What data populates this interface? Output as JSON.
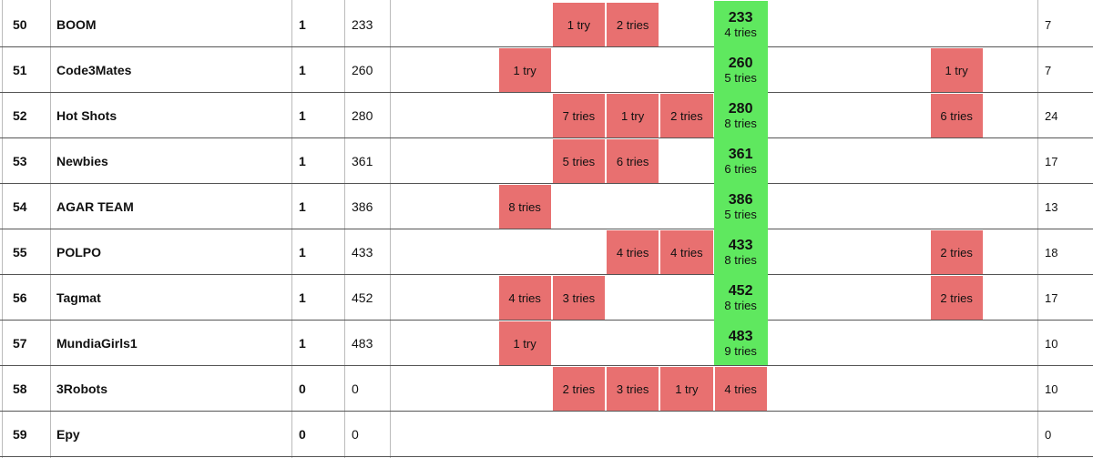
{
  "table": {
    "rows": [
      {
        "rank": "50",
        "team": "BOOM",
        "solved": "1",
        "time": "233",
        "cells": [
          null,
          null,
          null,
          {
            "color": "#e87070",
            "label": "1 try"
          },
          {
            "color": "#e87070",
            "label": "2 tries"
          },
          null,
          {
            "color": "#5fe85f",
            "score": "233",
            "label": "4 tries"
          },
          null,
          null,
          null,
          null,
          null
        ],
        "last": "7"
      },
      {
        "rank": "51",
        "team": "Code3Mates",
        "solved": "1",
        "time": "260",
        "cells": [
          null,
          null,
          {
            "color": "#e87070",
            "label": "1 try"
          },
          null,
          null,
          null,
          {
            "color": "#5fe85f",
            "score": "260",
            "label": "5 tries"
          },
          null,
          null,
          null,
          {
            "color": "#e87070",
            "label": "1 try"
          },
          null
        ],
        "last": "7"
      },
      {
        "rank": "52",
        "team": "Hot Shots",
        "solved": "1",
        "time": "280",
        "cells": [
          null,
          null,
          null,
          {
            "color": "#e87070",
            "label": "7 tries"
          },
          {
            "color": "#e87070",
            "label": "1 try"
          },
          {
            "color": "#e87070",
            "label": "2 tries"
          },
          {
            "color": "#5fe85f",
            "score": "280",
            "label": "8 tries"
          },
          null,
          null,
          null,
          {
            "color": "#e87070",
            "label": "6 tries"
          },
          null
        ],
        "last": "24"
      },
      {
        "rank": "53",
        "team": "Newbies",
        "solved": "1",
        "time": "361",
        "cells": [
          null,
          null,
          null,
          {
            "color": "#e87070",
            "label": "5 tries"
          },
          {
            "color": "#e87070",
            "label": "6 tries"
          },
          null,
          {
            "color": "#5fe85f",
            "score": "361",
            "label": "6 tries"
          },
          null,
          null,
          null,
          null,
          null
        ],
        "last": "17"
      },
      {
        "rank": "54",
        "team": "AGAR TEAM",
        "solved": "1",
        "time": "386",
        "cells": [
          null,
          null,
          {
            "color": "#e87070",
            "label": "8 tries"
          },
          null,
          null,
          null,
          {
            "color": "#5fe85f",
            "score": "386",
            "label": "5 tries"
          },
          null,
          null,
          null,
          null,
          null
        ],
        "last": "13"
      },
      {
        "rank": "55",
        "team": "POLPO",
        "solved": "1",
        "time": "433",
        "cells": [
          null,
          null,
          null,
          null,
          {
            "color": "#e87070",
            "label": "4 tries"
          },
          {
            "color": "#e87070",
            "label": "4 tries"
          },
          {
            "color": "#5fe85f",
            "score": "433",
            "label": "8 tries"
          },
          null,
          null,
          null,
          {
            "color": "#e87070",
            "label": "2 tries"
          },
          null
        ],
        "last": "18"
      },
      {
        "rank": "56",
        "team": "Tagmat",
        "solved": "1",
        "time": "452",
        "cells": [
          null,
          null,
          {
            "color": "#e87070",
            "label": "4 tries"
          },
          {
            "color": "#e87070",
            "label": "3 tries"
          },
          null,
          null,
          {
            "color": "#5fe85f",
            "score": "452",
            "label": "8 tries"
          },
          null,
          null,
          null,
          {
            "color": "#e87070",
            "label": "2 tries"
          },
          null
        ],
        "last": "17"
      },
      {
        "rank": "57",
        "team": "MundiaGirls1",
        "solved": "1",
        "time": "483",
        "cells": [
          null,
          null,
          {
            "color": "#e87070",
            "label": "1 try"
          },
          null,
          null,
          null,
          {
            "color": "#5fe85f",
            "score": "483",
            "label": "9 tries"
          },
          null,
          null,
          null,
          null,
          null
        ],
        "last": "10"
      },
      {
        "rank": "58",
        "team": "3Robots",
        "solved": "0",
        "time": "0",
        "cells": [
          null,
          null,
          null,
          {
            "color": "#e87070",
            "label": "2 tries"
          },
          {
            "color": "#e87070",
            "label": "3 tries"
          },
          {
            "color": "#e87070",
            "label": "1 try"
          },
          {
            "color": "#e87070",
            "label": "4 tries"
          },
          null,
          null,
          null,
          null,
          null
        ],
        "last": "10"
      },
      {
        "rank": "59",
        "team": "Epy",
        "solved": "0",
        "time": "0",
        "cells": [
          null,
          null,
          null,
          null,
          null,
          null,
          null,
          null,
          null,
          null,
          null,
          null
        ],
        "last": "0"
      }
    ]
  }
}
